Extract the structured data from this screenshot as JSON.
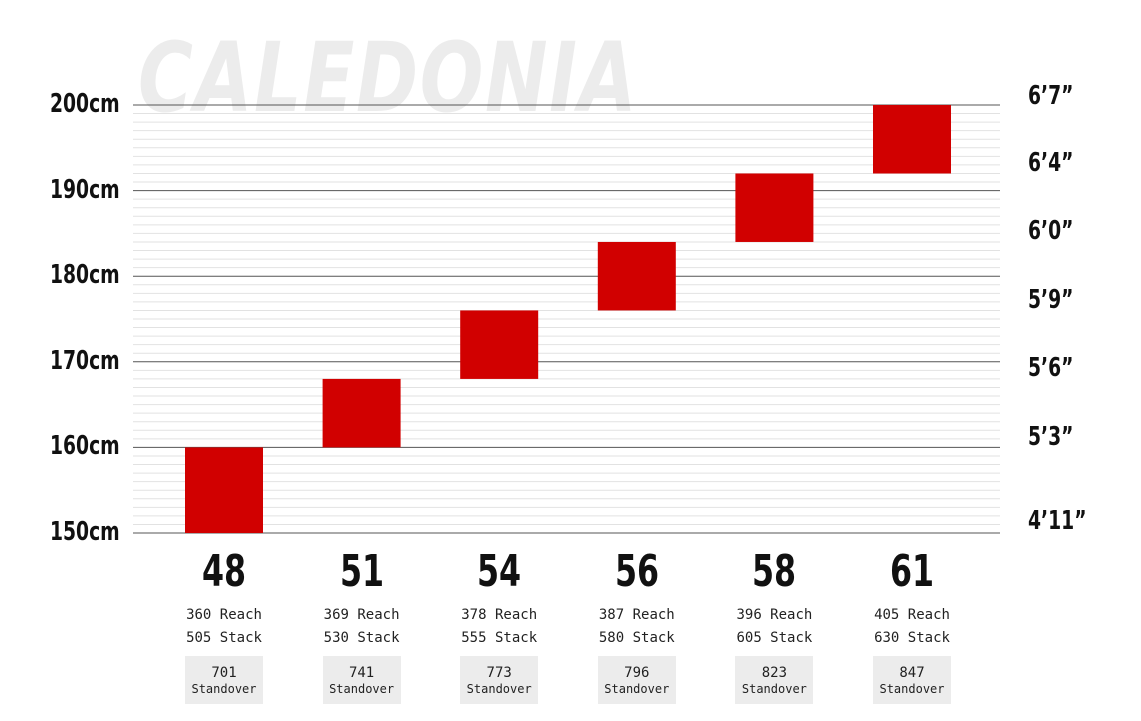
{
  "watermark": "CALEDONIA",
  "chart_data": {
    "type": "bar",
    "orientation": "floating-range",
    "categories": [
      "48",
      "51",
      "54",
      "56",
      "58",
      "61"
    ],
    "ranges_cm": [
      [
        150,
        160
      ],
      [
        160,
        168
      ],
      [
        168,
        176
      ],
      [
        176,
        184
      ],
      [
        184,
        192
      ],
      [
        192,
        200
      ]
    ],
    "ylim_cm": [
      150,
      200
    ],
    "yticks_left": [
      {
        "value": 200,
        "label": "200cm"
      },
      {
        "value": 190,
        "label": "190cm"
      },
      {
        "value": 180,
        "label": "180cm"
      },
      {
        "value": 170,
        "label": "170cm"
      },
      {
        "value": 160,
        "label": "160cm"
      },
      {
        "value": 150,
        "label": "150cm"
      }
    ],
    "yticks_right": [
      {
        "value": 200.7,
        "label": "6’7”"
      },
      {
        "value": 193.0,
        "label": "6’4”"
      },
      {
        "value": 183.0,
        "label": "6’0”"
      },
      {
        "value": 175.3,
        "label": "5’9”"
      },
      {
        "value": 167.6,
        "label": "5’6”"
      },
      {
        "value": 160.0,
        "label": "5’3”"
      },
      {
        "value": 150.0,
        "label": "4’11”"
      }
    ],
    "reach": [
      "360 Reach",
      "369 Reach",
      "378 Reach",
      "387 Reach",
      "396 Reach",
      "405 Reach"
    ],
    "stack": [
      "505 Stack",
      "530 Stack",
      "555 Stack",
      "580 Stack",
      "605 Stack",
      "630 Stack"
    ],
    "standover_values": [
      "701",
      "741",
      "773",
      "796",
      "823",
      "847"
    ],
    "standover_label": "Standover",
    "grid": true,
    "bar_color": "#d10000"
  }
}
